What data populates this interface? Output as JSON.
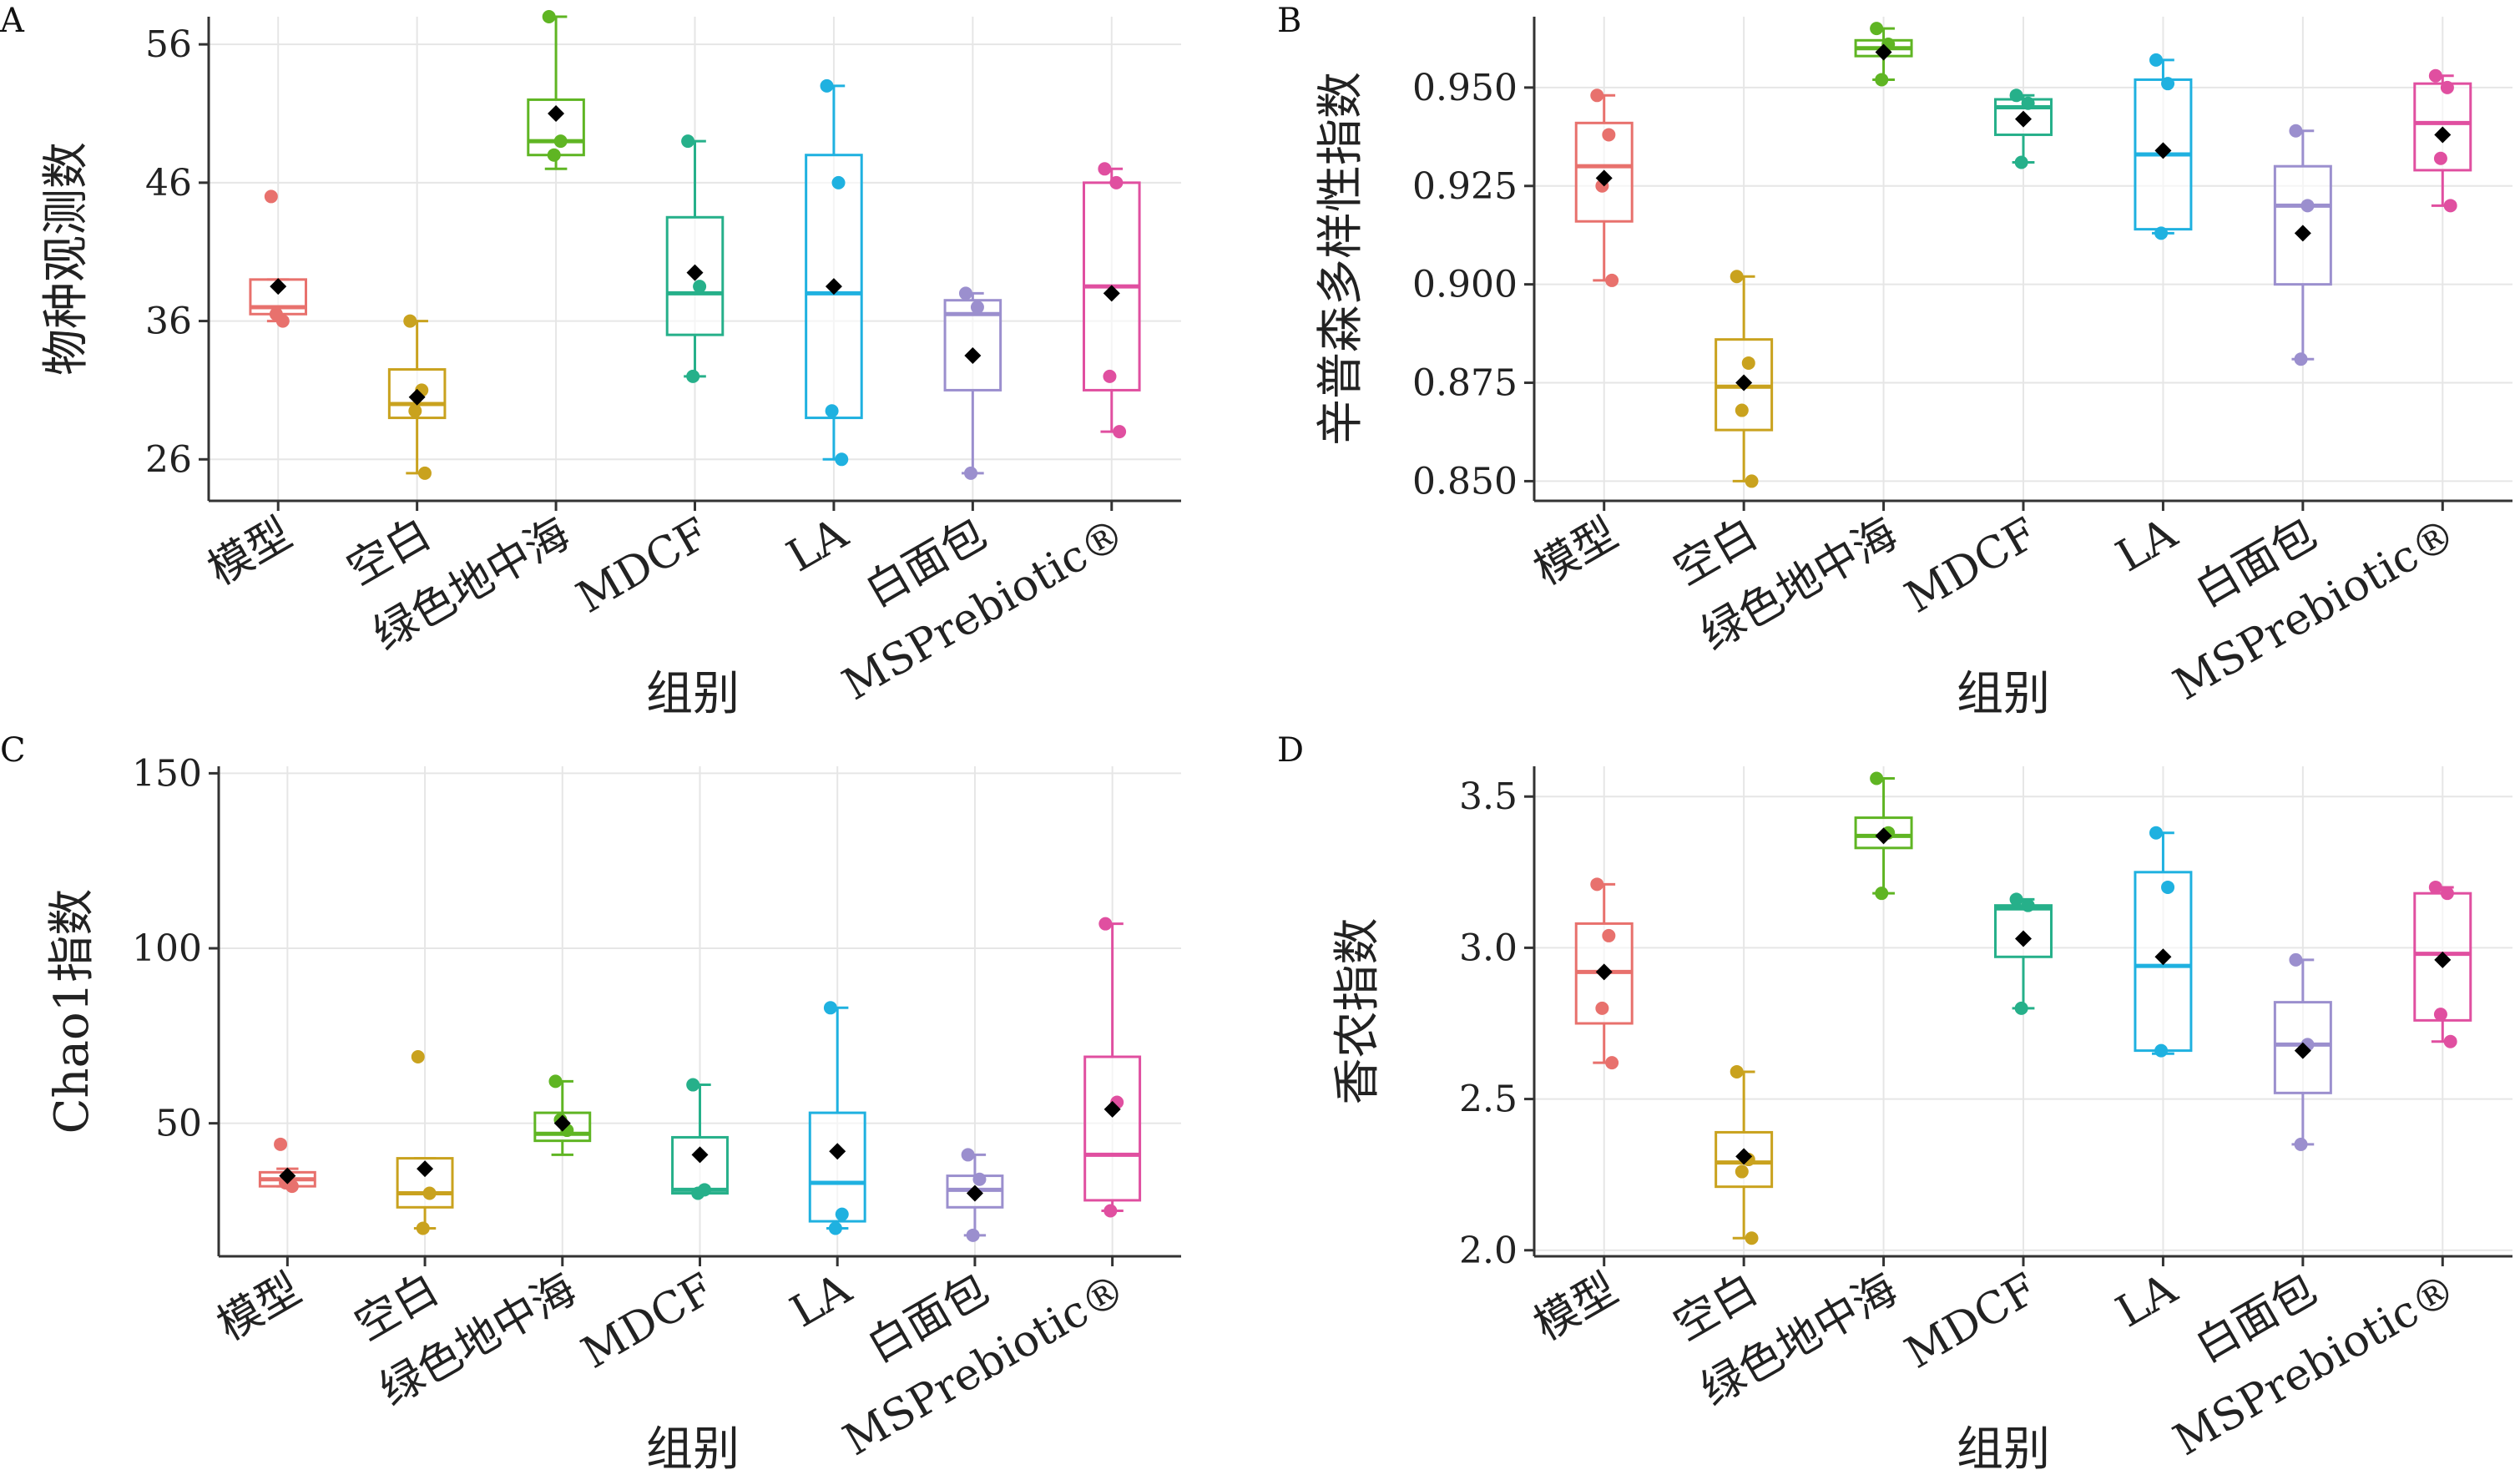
{
  "categories": [
    "模型",
    "空白",
    "绿色地中海",
    "MDCF",
    "LA",
    "白面包",
    "MSPrebiotic®"
  ],
  "colors": [
    "#E8716D",
    "#C9A21E",
    "#5FB523",
    "#26B08A",
    "#1FB1E0",
    "#9B8FCE",
    "#E04FA0"
  ],
  "chart_data": [
    {
      "panel": "A",
      "type": "box",
      "xlabel": "组别",
      "ylabel": "物种观测数",
      "ylim": [
        23,
        58
      ],
      "yticks": [
        26,
        36,
        46,
        56
      ],
      "grid": true,
      "boxes": [
        {
          "min": 36,
          "q1": 36.5,
          "median": 37,
          "q3": 39,
          "max": 39,
          "mean": 38.5,
          "points": [
            45,
            36,
            36.5
          ]
        },
        {
          "min": 25,
          "q1": 29,
          "median": 30,
          "q3": 32.5,
          "max": 36,
          "mean": 30.5,
          "points": [
            36,
            31,
            29.5,
            25
          ]
        },
        {
          "min": 47,
          "q1": 48,
          "median": 49,
          "q3": 52,
          "max": 58,
          "mean": 51,
          "points": [
            58,
            49,
            48
          ]
        },
        {
          "min": 32,
          "q1": 35,
          "median": 38,
          "q3": 43.5,
          "max": 49,
          "mean": 39.5,
          "points": [
            49,
            38.5,
            32
          ]
        },
        {
          "min": 26,
          "q1": 29,
          "median": 38,
          "q3": 48,
          "max": 53,
          "mean": 38.5,
          "points": [
            53,
            46,
            29.5,
            26
          ]
        },
        {
          "min": 25,
          "q1": 31,
          "median": 36.5,
          "q3": 37.5,
          "max": 38,
          "mean": 33.5,
          "points": [
            38,
            37,
            25
          ]
        },
        {
          "min": 28,
          "q1": 31,
          "median": 38.5,
          "q3": 46,
          "max": 47,
          "mean": 38,
          "points": [
            47,
            46,
            32,
            28
          ]
        }
      ]
    },
    {
      "panel": "B",
      "type": "box",
      "xlabel": "组别",
      "ylabel": "辛普森多样性指数",
      "ylim": [
        0.845,
        0.968
      ],
      "yticks": [
        "0.850",
        "0.875",
        "0.900",
        "0.925",
        "0.950"
      ],
      "grid": true,
      "boxes": [
        {
          "min": 0.901,
          "q1": 0.916,
          "median": 0.93,
          "q3": 0.941,
          "max": 0.948,
          "mean": 0.927,
          "points": [
            0.948,
            0.938,
            0.925,
            0.901
          ]
        },
        {
          "min": 0.85,
          "q1": 0.863,
          "median": 0.874,
          "q3": 0.886,
          "max": 0.902,
          "mean": 0.875,
          "points": [
            0.902,
            0.88,
            0.868,
            0.85
          ]
        },
        {
          "min": 0.952,
          "q1": 0.958,
          "median": 0.96,
          "q3": 0.962,
          "max": 0.965,
          "mean": 0.959,
          "points": [
            0.965,
            0.961,
            0.952
          ]
        },
        {
          "min": 0.931,
          "q1": 0.938,
          "median": 0.945,
          "q3": 0.947,
          "max": 0.948,
          "mean": 0.942,
          "points": [
            0.948,
            0.946,
            0.931
          ]
        },
        {
          "min": 0.913,
          "q1": 0.914,
          "median": 0.933,
          "q3": 0.952,
          "max": 0.957,
          "mean": 0.934,
          "points": [
            0.957,
            0.951,
            0.913
          ]
        },
        {
          "min": 0.881,
          "q1": 0.9,
          "median": 0.92,
          "q3": 0.93,
          "max": 0.939,
          "mean": 0.913,
          "points": [
            0.939,
            0.92,
            0.881
          ]
        },
        {
          "min": 0.92,
          "q1": 0.929,
          "median": 0.941,
          "q3": 0.951,
          "max": 0.953,
          "mean": 0.938,
          "points": [
            0.953,
            0.95,
            0.932,
            0.92
          ]
        }
      ]
    },
    {
      "panel": "C",
      "type": "box",
      "xlabel": "组别",
      "ylabel": "Chao1指数",
      "ylim": [
        12,
        152
      ],
      "yticks": [
        50,
        100,
        150
      ],
      "grid": true,
      "boxes": [
        {
          "min": 32,
          "q1": 32,
          "median": 34,
          "q3": 36,
          "max": 37,
          "mean": 35,
          "points": [
            44,
            32,
            33
          ]
        },
        {
          "min": 20,
          "q1": 26,
          "median": 30,
          "q3": 40,
          "max": 40,
          "mean": 37,
          "points": [
            69,
            30,
            20
          ]
        },
        {
          "min": 41,
          "q1": 45,
          "median": 47,
          "q3": 53,
          "max": 62,
          "mean": 50,
          "points": [
            62,
            48,
            51
          ]
        },
        {
          "min": 30,
          "q1": 30,
          "median": 31,
          "q3": 46,
          "max": 61,
          "mean": 41,
          "points": [
            61,
            31,
            30
          ]
        },
        {
          "min": 20,
          "q1": 22,
          "median": 33,
          "q3": 53,
          "max": 83,
          "mean": 42,
          "points": [
            83,
            24,
            20
          ]
        },
        {
          "min": 18,
          "q1": 26,
          "median": 31,
          "q3": 35,
          "max": 41,
          "mean": 30,
          "points": [
            41,
            34,
            18
          ]
        },
        {
          "min": 25,
          "q1": 28,
          "median": 41,
          "q3": 69,
          "max": 107,
          "mean": 54,
          "points": [
            107,
            56,
            25
          ]
        }
      ]
    },
    {
      "panel": "D",
      "type": "box",
      "xlabel": "组别",
      "ylabel": "香农指数",
      "ylim": [
        1.98,
        3.6
      ],
      "yticks": [
        "2.0",
        "2.5",
        "3.0",
        "3.5"
      ],
      "grid": true,
      "boxes": [
        {
          "min": 2.62,
          "q1": 2.75,
          "median": 2.92,
          "q3": 3.08,
          "max": 3.21,
          "mean": 2.92,
          "points": [
            3.21,
            3.04,
            2.8,
            2.62
          ]
        },
        {
          "min": 2.04,
          "q1": 2.21,
          "median": 2.29,
          "q3": 2.39,
          "max": 2.59,
          "mean": 2.31,
          "points": [
            2.59,
            2.3,
            2.26,
            2.04
          ]
        },
        {
          "min": 3.18,
          "q1": 3.33,
          "median": 3.37,
          "q3": 3.43,
          "max": 3.56,
          "mean": 3.37,
          "points": [
            3.56,
            3.38,
            3.18
          ]
        },
        {
          "min": 2.8,
          "q1": 2.97,
          "median": 3.13,
          "q3": 3.14,
          "max": 3.16,
          "mean": 3.03,
          "points": [
            3.16,
            3.14,
            2.8
          ]
        },
        {
          "min": 2.65,
          "q1": 2.66,
          "median": 2.94,
          "q3": 3.25,
          "max": 3.38,
          "mean": 2.97,
          "points": [
            3.38,
            3.2,
            2.66
          ]
        },
        {
          "min": 2.35,
          "q1": 2.52,
          "median": 2.68,
          "q3": 2.82,
          "max": 2.96,
          "mean": 2.66,
          "points": [
            2.96,
            2.68,
            2.35
          ]
        },
        {
          "min": 2.69,
          "q1": 2.76,
          "median": 2.98,
          "q3": 3.18,
          "max": 3.2,
          "mean": 2.96,
          "points": [
            3.2,
            3.18,
            2.78,
            2.69
          ]
        }
      ]
    }
  ]
}
